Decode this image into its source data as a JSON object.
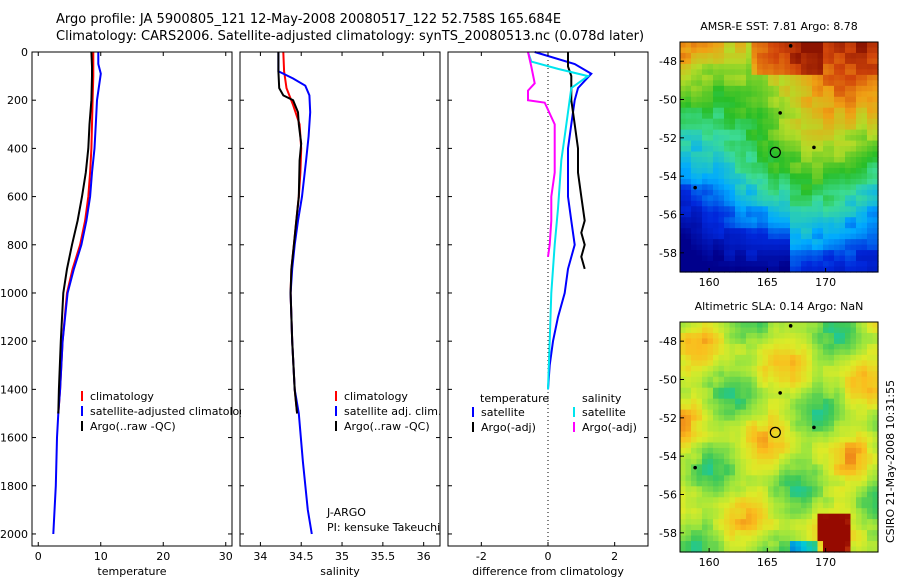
{
  "header": {
    "line1": "Argo profile: JA 5900805_121 12-May-2008 20080517_122 52.758S 165.684E",
    "line2": "Climatology: CARS2006. Satellite-adjusted climatology: synTS_20080513.nc (0.078d later)"
  },
  "side_note": "CSIRO 21-May-2008 10:31:55",
  "colors": {
    "climatology": "#ff0000",
    "satellite": "#0000ff",
    "argo": "#000000",
    "temp_satellite": "#0000ff",
    "temp_argo": "#000000",
    "sal_satellite": "#00e5ee",
    "sal_argo": "#ff00ff"
  },
  "chart_data": [
    {
      "type": "line",
      "xlabel": "temperature",
      "xlim": [
        -1,
        31
      ],
      "ylim": [
        2050,
        0
      ],
      "xticks": [
        0,
        10,
        20,
        30
      ],
      "yticks": [
        0,
        200,
        400,
        600,
        800,
        1000,
        1200,
        1400,
        1600,
        1800,
        2000
      ],
      "legend": [
        "climatology",
        "satellite-adjusted climatology",
        "Argo(..raw -QC)"
      ],
      "series": [
        {
          "name": "climatology",
          "color": "#ff0000",
          "points": [
            [
              8.8,
              0
            ],
            [
              8.8,
              100
            ],
            [
              8.7,
              200
            ],
            [
              8.6,
              300
            ],
            [
              8.5,
              400
            ],
            [
              8.3,
              500
            ],
            [
              8.0,
              600
            ],
            [
              7.5,
              700
            ],
            [
              6.7,
              800
            ],
            [
              5.5,
              900
            ],
            [
              4.6,
              1000
            ],
            [
              3.9,
              1200
            ],
            [
              3.5,
              1400
            ],
            [
              3.2,
              1500
            ]
          ]
        },
        {
          "name": "satellite-adjusted climatology",
          "color": "#0000ff",
          "points": [
            [
              9.6,
              0
            ],
            [
              9.6,
              50
            ],
            [
              10.0,
              90
            ],
            [
              9.4,
              200
            ],
            [
              9.2,
              300
            ],
            [
              9.0,
              400
            ],
            [
              8.6,
              500
            ],
            [
              8.3,
              600
            ],
            [
              7.7,
              700
            ],
            [
              6.9,
              800
            ],
            [
              5.7,
              900
            ],
            [
              4.7,
              1000
            ],
            [
              3.9,
              1200
            ],
            [
              3.5,
              1400
            ],
            [
              3.2,
              1500
            ],
            [
              3.0,
              1600
            ],
            [
              2.8,
              1800
            ],
            [
              2.4,
              2000
            ]
          ]
        },
        {
          "name": "Argo(..raw -QC)",
          "color": "#000000",
          "points": [
            [
              8.5,
              0
            ],
            [
              8.6,
              60
            ],
            [
              8.6,
              100
            ],
            [
              8.5,
              200
            ],
            [
              8.2,
              300
            ],
            [
              8.0,
              400
            ],
            [
              7.6,
              500
            ],
            [
              7.0,
              600
            ],
            [
              6.3,
              700
            ],
            [
              5.4,
              800
            ],
            [
              4.6,
              900
            ],
            [
              4.0,
              1000
            ],
            [
              3.6,
              1200
            ],
            [
              3.3,
              1400
            ],
            [
              3.2,
              1500
            ]
          ]
        }
      ]
    },
    {
      "type": "line",
      "xlabel": "salinity",
      "xlim": [
        33.75,
        36.2
      ],
      "ylim": [
        2050,
        0
      ],
      "xticks": [
        34,
        34.5,
        35,
        35.5,
        36
      ],
      "legend": [
        "climatology",
        "satellite adj. clim.",
        "Argo(..raw -QC)"
      ],
      "annotation": [
        "J-ARGO",
        "PI: kensuke Takeuchi"
      ],
      "series": [
        {
          "name": "climatology",
          "color": "#ff0000",
          "points": [
            [
              34.28,
              0
            ],
            [
              34.29,
              80
            ],
            [
              34.32,
              150
            ],
            [
              34.4,
              220
            ],
            [
              34.48,
              300
            ],
            [
              34.5,
              400
            ],
            [
              34.49,
              500
            ],
            [
              34.47,
              600
            ],
            [
              34.44,
              700
            ],
            [
              34.41,
              800
            ],
            [
              34.38,
              900
            ],
            [
              34.37,
              1000
            ],
            [
              34.39,
              1200
            ],
            [
              34.42,
              1400
            ],
            [
              34.45,
              1500
            ]
          ]
        },
        {
          "name": "satellite adj. clim.",
          "color": "#0000ff",
          "points": [
            [
              34.22,
              0
            ],
            [
              34.22,
              80
            ],
            [
              34.4,
              110
            ],
            [
              34.55,
              140
            ],
            [
              34.6,
              180
            ],
            [
              34.61,
              250
            ],
            [
              34.59,
              350
            ],
            [
              34.56,
              450
            ],
            [
              34.51,
              600
            ],
            [
              34.46,
              700
            ],
            [
              34.42,
              800
            ],
            [
              34.39,
              900
            ],
            [
              34.37,
              1000
            ],
            [
              34.39,
              1200
            ],
            [
              34.42,
              1400
            ],
            [
              34.47,
              1500
            ],
            [
              34.52,
              1700
            ],
            [
              34.58,
              1900
            ],
            [
              34.63,
              2000
            ]
          ]
        },
        {
          "name": "Argo(..raw -QC)",
          "color": "#000000",
          "points": [
            [
              34.22,
              0
            ],
            [
              34.22,
              80
            ],
            [
              34.23,
              150
            ],
            [
              34.28,
              180
            ],
            [
              34.4,
              200
            ],
            [
              34.46,
              250
            ],
            [
              34.47,
              300
            ],
            [
              34.5,
              380
            ],
            [
              34.48,
              450
            ],
            [
              34.47,
              600
            ],
            [
              34.44,
              700
            ],
            [
              34.41,
              800
            ],
            [
              34.38,
              900
            ],
            [
              34.37,
              1000
            ],
            [
              34.39,
              1200
            ],
            [
              34.42,
              1400
            ],
            [
              34.45,
              1500
            ]
          ]
        }
      ]
    },
    {
      "type": "line",
      "xlabel": "difference from climatology",
      "xlim": [
        -3,
        3
      ],
      "ylim": [
        2050,
        0
      ],
      "xticks": [
        -2,
        0,
        2
      ],
      "legend_titles": [
        "temperature",
        "salinity"
      ],
      "legend": [
        "satellite",
        "Argo(-adj)",
        "satellite",
        "Argo(-adj)"
      ],
      "series": [
        {
          "name": "temperature satellite",
          "color": "#0000ff",
          "points": [
            [
              -0.4,
              0
            ],
            [
              0.8,
              50
            ],
            [
              1.3,
              90
            ],
            [
              0.9,
              150
            ],
            [
              0.8,
              200
            ],
            [
              0.7,
              300
            ],
            [
              0.6,
              400
            ],
            [
              0.6,
              500
            ],
            [
              0.6,
              600
            ],
            [
              0.7,
              700
            ],
            [
              0.8,
              800
            ],
            [
              0.6,
              900
            ],
            [
              0.5,
              1000
            ],
            [
              0.3,
              1100
            ],
            [
              0.15,
              1200
            ],
            [
              0.05,
              1300
            ],
            [
              0,
              1400
            ]
          ]
        },
        {
          "name": "temperature Argo(-adj)",
          "color": "#000000",
          "points": [
            [
              0.6,
              0
            ],
            [
              0.6,
              60
            ],
            [
              0.7,
              100
            ],
            [
              0.7,
              200
            ],
            [
              0.8,
              300
            ],
            [
              0.9,
              400
            ],
            [
              0.9,
              500
            ],
            [
              1.0,
              600
            ],
            [
              1.1,
              700
            ],
            [
              1.0,
              750
            ],
            [
              1.1,
              800
            ],
            [
              1.0,
              850
            ],
            [
              1.1,
              900
            ]
          ]
        },
        {
          "name": "salinity satellite",
          "color": "#00e5ee",
          "points": [
            [
              -0.6,
              0
            ],
            [
              -0.5,
              40
            ],
            [
              0.3,
              70
            ],
            [
              1.2,
              100
            ],
            [
              0.7,
              150
            ],
            [
              0.6,
              250
            ],
            [
              0.5,
              350
            ],
            [
              0.4,
              450
            ],
            [
              0.35,
              550
            ],
            [
              0.3,
              650
            ],
            [
              0.2,
              800
            ],
            [
              0.1,
              1000
            ],
            [
              0.05,
              1200
            ],
            [
              0,
              1400
            ]
          ]
        },
        {
          "name": "salinity Argo(-adj)",
          "color": "#ff00ff",
          "points": [
            [
              -0.6,
              0
            ],
            [
              -0.5,
              60
            ],
            [
              -0.4,
              130
            ],
            [
              -0.6,
              160
            ],
            [
              -0.6,
              200
            ],
            [
              -0.1,
              210
            ],
            [
              0.2,
              300
            ],
            [
              0.2,
              400
            ],
            [
              0.2,
              500
            ],
            [
              0.1,
              600
            ],
            [
              0.1,
              700
            ],
            [
              0.05,
              800
            ],
            [
              0,
              850
            ]
          ]
        }
      ]
    },
    {
      "type": "heatmap",
      "title": "AMSR-E SST: 7.81 Argo: 8.78",
      "xlim": [
        157.5,
        174.5
      ],
      "ylim": [
        -59,
        -47
      ],
      "xticks": [
        160,
        165,
        170
      ],
      "yticks": [
        -48,
        -50,
        -52,
        -54,
        -56,
        -58
      ],
      "argo_position": [
        165.684,
        -52.758
      ]
    },
    {
      "type": "heatmap",
      "title": "Altimetric SLA: 0.14 Argo: NaN",
      "xlim": [
        157.5,
        174.5
      ],
      "ylim": [
        -59,
        -47
      ],
      "xticks": [
        160,
        165,
        170
      ],
      "yticks": [
        -48,
        -50,
        -52,
        -54,
        -56,
        -58
      ],
      "argo_position": [
        165.684,
        -52.758
      ]
    }
  ]
}
